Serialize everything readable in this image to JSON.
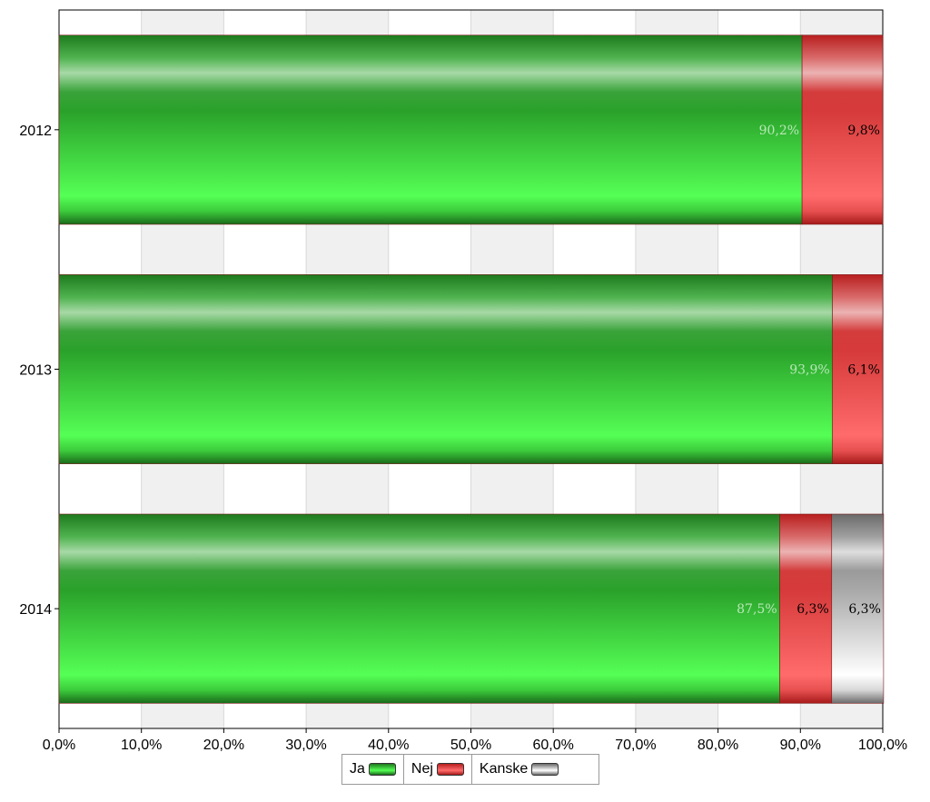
{
  "chart_data": {
    "type": "bar",
    "orientation": "horizontal",
    "stacked": true,
    "categories": [
      "2012",
      "2013",
      "2014"
    ],
    "series": [
      {
        "name": "Ja",
        "color": "#33cc33",
        "values": [
          90.2,
          93.9,
          87.5
        ],
        "labels": [
          "90,2%",
          "93,9%",
          "87,5%"
        ]
      },
      {
        "name": "Nej",
        "color": "#e84040",
        "values": [
          9.8,
          6.1,
          6.3
        ],
        "labels": [
          "9,8%",
          "6,1%",
          "6,3%"
        ]
      },
      {
        "name": "Kanske",
        "color": "#b0b0b0",
        "values": [
          0,
          0,
          6.3
        ],
        "labels": [
          "",
          "",
          "6,3%"
        ]
      }
    ],
    "xlim": [
      0,
      100
    ],
    "xticks": [
      "0,0%",
      "10,0%",
      "20,0%",
      "30,0%",
      "40,0%",
      "50,0%",
      "60,0%",
      "70,0%",
      "80,0%",
      "90,0%",
      "100,0%"
    ],
    "grid": true,
    "legend_position": "bottom"
  }
}
